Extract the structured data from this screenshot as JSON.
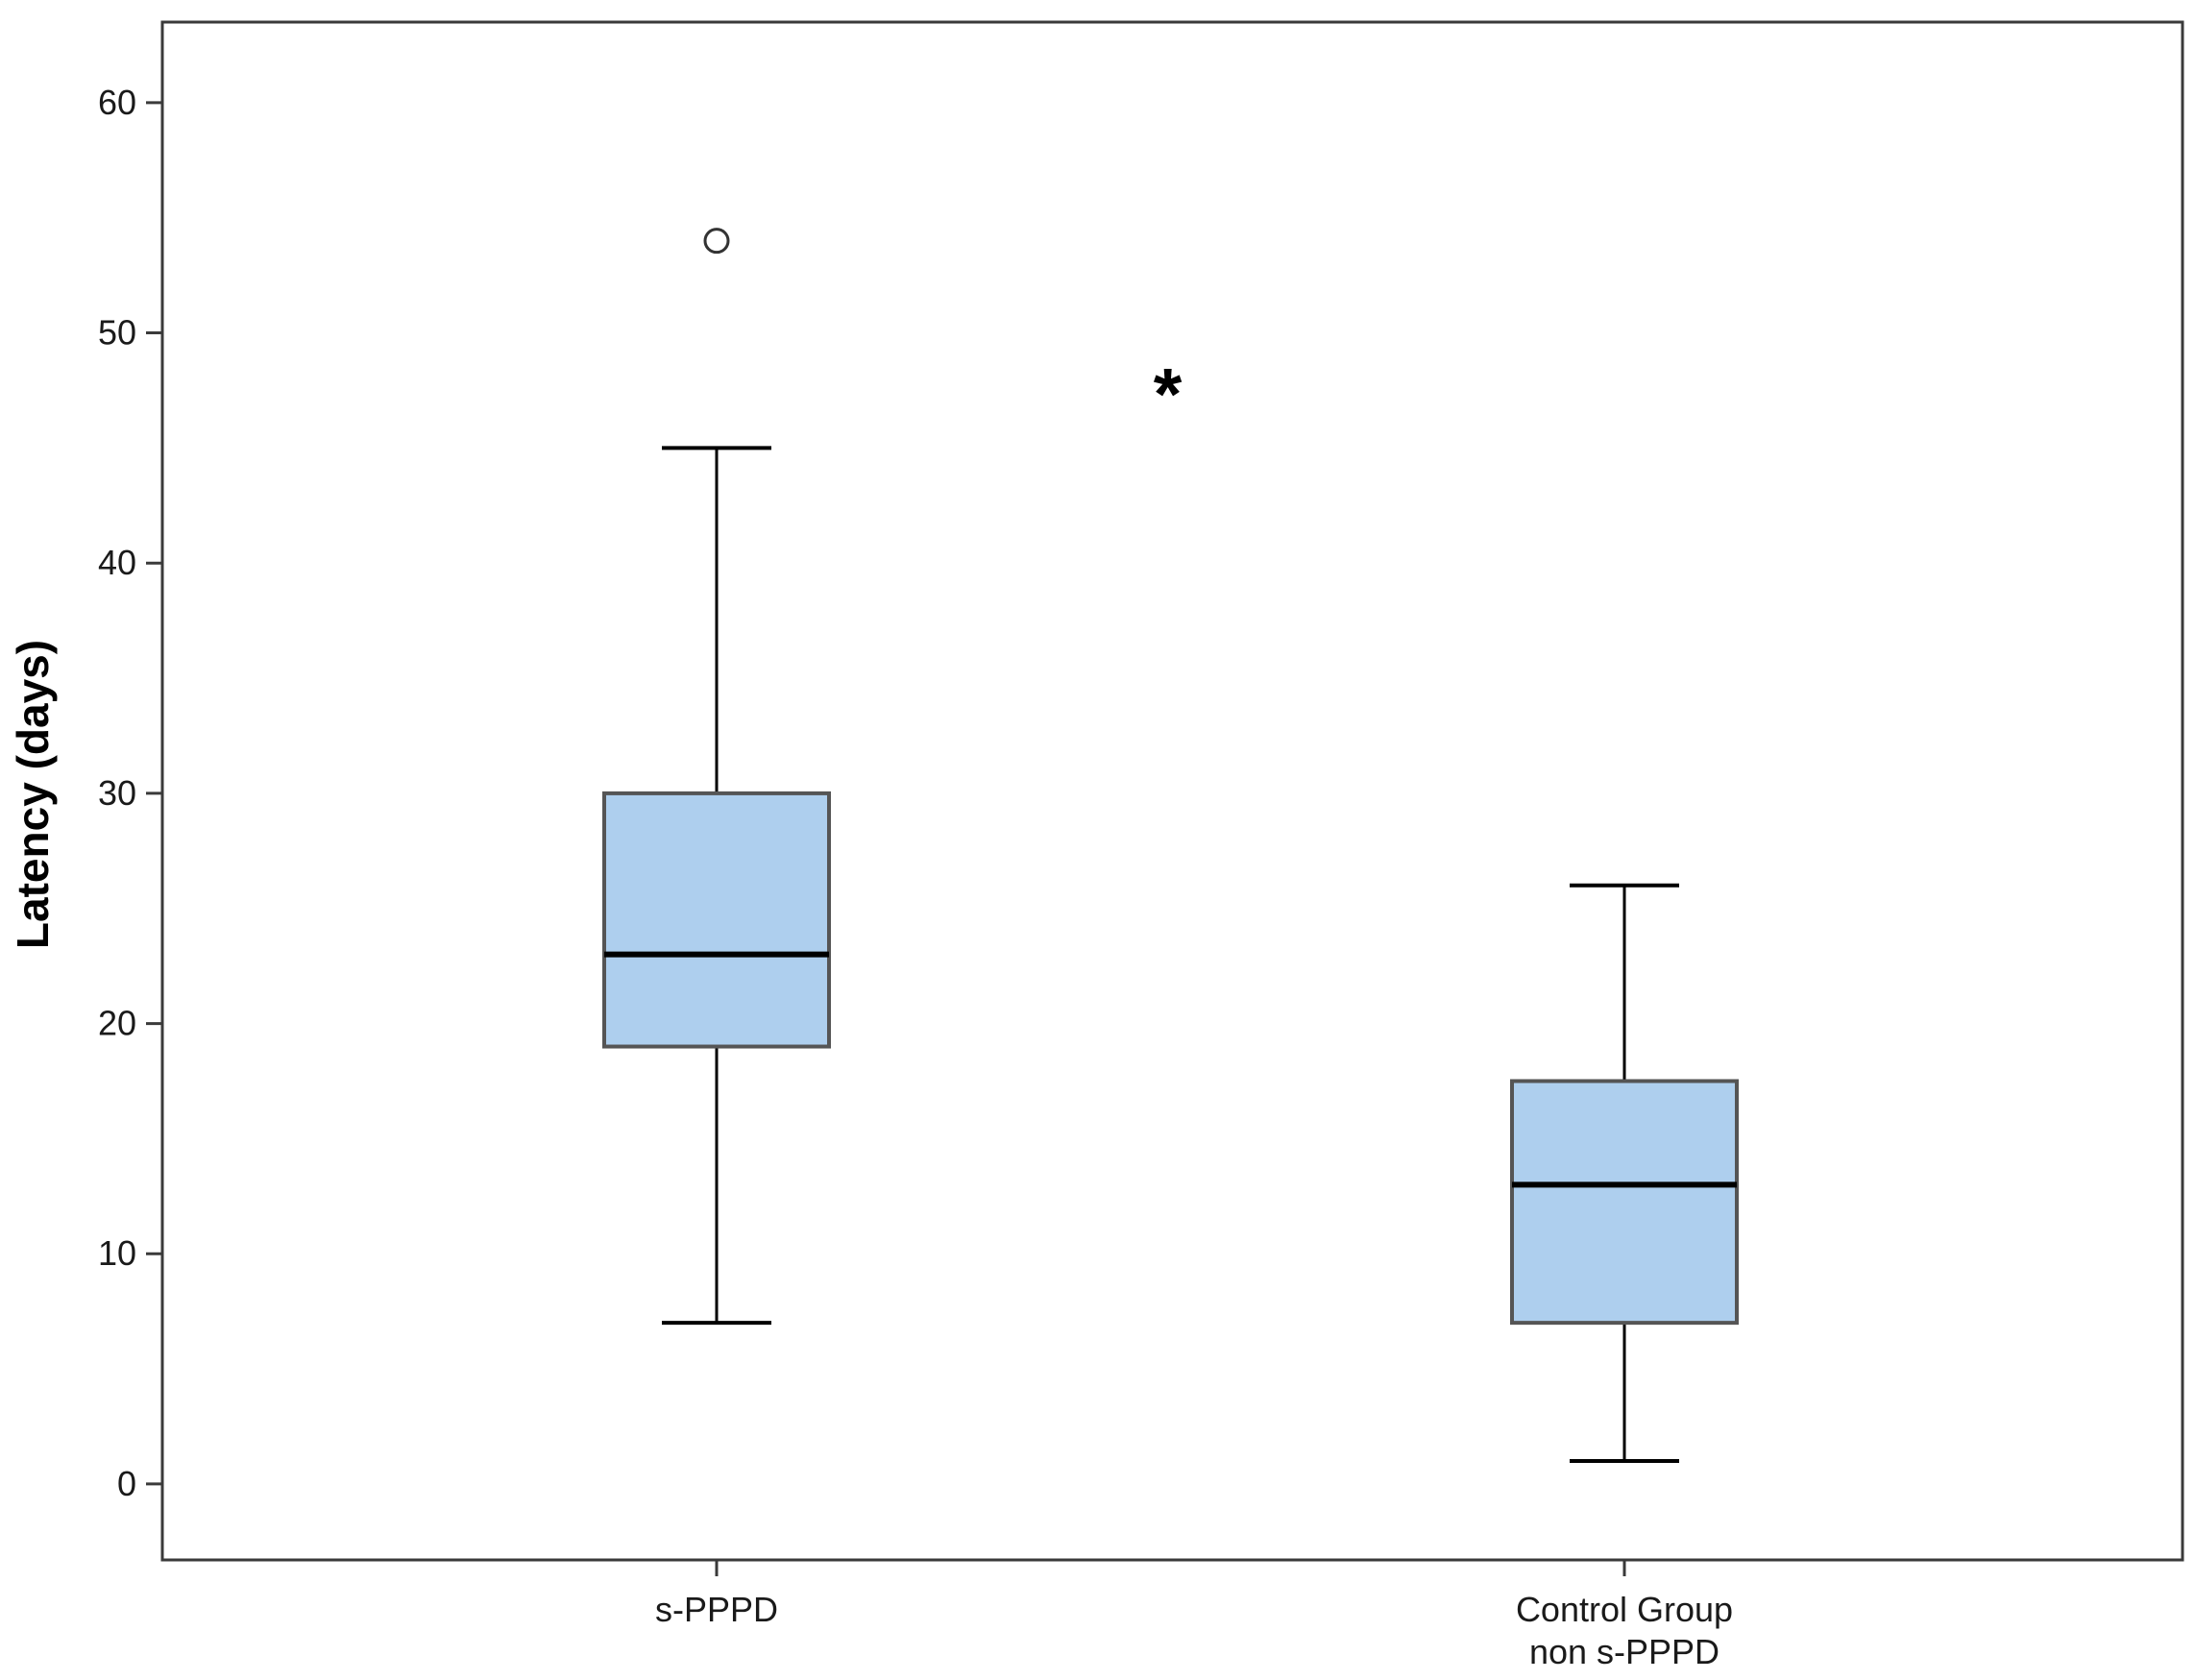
{
  "chart_data": {
    "type": "box",
    "ylabel": "Latency (days)",
    "xlabel": "",
    "title": "",
    "ylim": [
      -3.3,
      63.5
    ],
    "yticks": [
      0,
      10,
      20,
      30,
      40,
      50,
      60
    ],
    "ytick_labels": [
      "0",
      "10",
      "20",
      "30",
      "40",
      "50",
      "60"
    ],
    "categories": [
      {
        "lines": [
          "s-PPPD"
        ]
      },
      {
        "lines": [
          "Control Group",
          "non s-PPPD"
        ]
      }
    ],
    "boxes": [
      {
        "whisker_low": 7,
        "q1": 19,
        "median": 23,
        "q3": 30,
        "whisker_high": 45,
        "outliers": [
          54
        ]
      },
      {
        "whisker_low": 1,
        "q1": 7,
        "median": 13,
        "q3": 17.5,
        "whisker_high": 26,
        "outliers": []
      }
    ],
    "annotations": [
      {
        "text": "*",
        "x": 1.5,
        "y": 48
      }
    ],
    "box_fill": "#aecfee",
    "box_edge": "#555555",
    "median_color": "#000000"
  }
}
